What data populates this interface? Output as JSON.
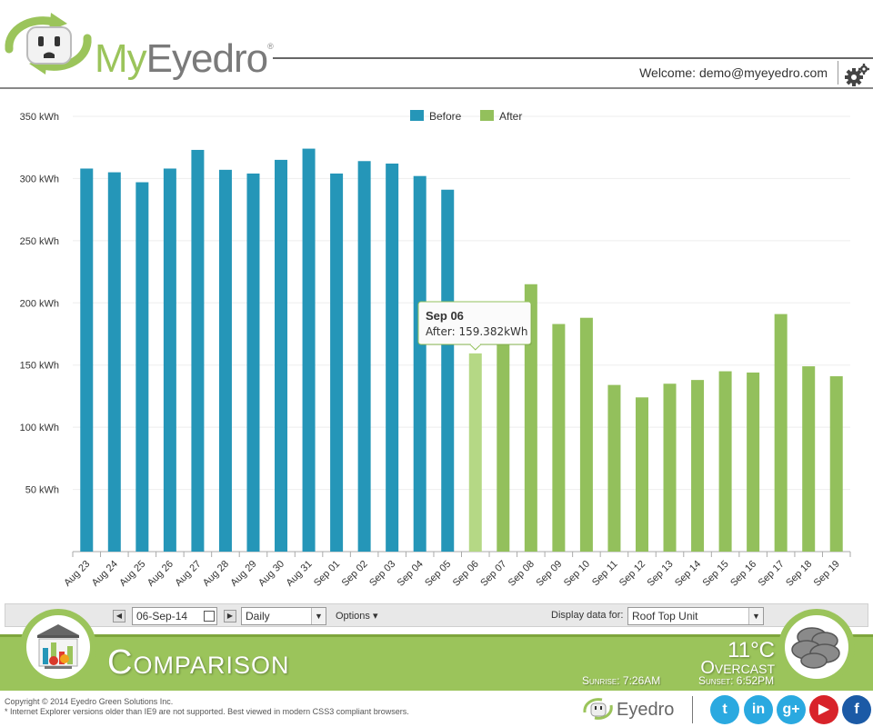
{
  "header": {
    "logo_prefix": "My",
    "logo_suffix": "Eyedro",
    "logo_reg": "®",
    "welcome": "Welcome: demo@myeyedro.com"
  },
  "chart_data": {
    "type": "bar",
    "title": "",
    "xlabel": "",
    "ylabel": "",
    "ylim": [
      0,
      350
    ],
    "y_ticks": [
      50,
      100,
      150,
      200,
      250,
      300,
      350
    ],
    "y_tick_suffix": " kWh",
    "categories": [
      "Aug 23",
      "Aug 24",
      "Aug 25",
      "Aug 26",
      "Aug 27",
      "Aug 28",
      "Aug 29",
      "Aug 30",
      "Aug 31",
      "Sep 01",
      "Sep 02",
      "Sep 03",
      "Sep 04",
      "Sep 05",
      "Sep 06",
      "Sep 07",
      "Sep 08",
      "Sep 09",
      "Sep 10",
      "Sep 11",
      "Sep 12",
      "Sep 13",
      "Sep 14",
      "Sep 15",
      "Sep 16",
      "Sep 17",
      "Sep 18",
      "Sep 19"
    ],
    "series": [
      {
        "name": "Before",
        "color": "#2596b8",
        "values": [
          308,
          305,
          297,
          308,
          323,
          307,
          304,
          315,
          324,
          304,
          314,
          312,
          302,
          291,
          null,
          null,
          null,
          null,
          null,
          null,
          null,
          null,
          null,
          null,
          null,
          null,
          null,
          null
        ]
      },
      {
        "name": "After",
        "color": "#93c05c",
        "values": [
          null,
          null,
          null,
          null,
          null,
          null,
          null,
          null,
          null,
          null,
          null,
          null,
          null,
          null,
          159.382,
          167,
          215,
          183,
          188,
          134,
          124,
          135,
          138,
          145,
          144,
          191,
          149,
          141
        ]
      }
    ],
    "highlight_color": "#b5d885",
    "highlight_index": 14,
    "legend": "top-center",
    "tooltip": {
      "title": "Sep 06",
      "label": "After: ",
      "value": "159.382kWh"
    }
  },
  "toolbar": {
    "prev_icon": "arrow-left-icon",
    "next_icon": "arrow-right-icon",
    "date": "06-Sep-14",
    "period": "Daily",
    "options": "Options ▾",
    "display_label": "Display data for:",
    "device": "Roof Top Unit"
  },
  "banner": {
    "title": "Comparison",
    "temperature": "11°C",
    "condition": "Overcast",
    "sunrise": "Sunrise: 7:26AM",
    "sunset": "Sunset: 6:52PM"
  },
  "footer": {
    "copyright": "Copyright © 2014 Eyedro Green Solutions Inc.",
    "ie_note": "* Internet Explorer versions older than IE9 are not supported. Best viewed in modern CSS3 compliant browsers.",
    "logo_text": "Eyedro",
    "social": [
      {
        "name": "twitter-icon",
        "glyph": "t",
        "color": "#2aa9e0"
      },
      {
        "name": "linkedin-icon",
        "glyph": "in",
        "color": "#2aa9e0"
      },
      {
        "name": "googleplus-icon",
        "glyph": "g+",
        "color": "#2aa9e0"
      },
      {
        "name": "youtube-icon",
        "glyph": "▶",
        "color": "#d8232a"
      },
      {
        "name": "facebook-icon",
        "glyph": "f",
        "color": "#1b5aa6"
      }
    ]
  }
}
